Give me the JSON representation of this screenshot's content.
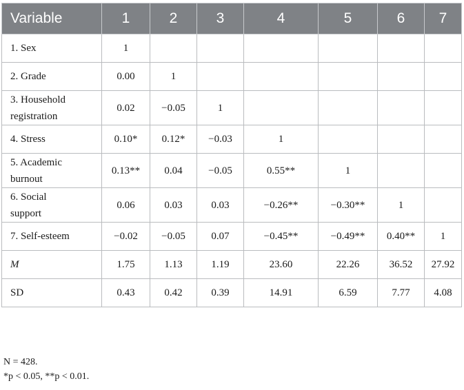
{
  "table": {
    "headers": [
      "Variable",
      "1",
      "2",
      "3",
      "4",
      "5",
      "6",
      "7"
    ],
    "rows": [
      {
        "label": [
          "1. Sex"
        ],
        "italic": false,
        "cells": [
          "1",
          "",
          "",
          "",
          "",
          "",
          ""
        ]
      },
      {
        "label": [
          "2. Grade"
        ],
        "italic": false,
        "cells": [
          "0.00",
          "1",
          "",
          "",
          "",
          "",
          ""
        ]
      },
      {
        "label": [
          "3. Household",
          "registration"
        ],
        "italic": false,
        "cells": [
          "0.02",
          "−0.05",
          "1",
          "",
          "",
          "",
          ""
        ]
      },
      {
        "label": [
          "4. Stress"
        ],
        "italic": false,
        "cells": [
          "0.10*",
          "0.12*",
          "−0.03",
          "1",
          "",
          "",
          ""
        ]
      },
      {
        "label": [
          "5. Academic",
          "burnout"
        ],
        "italic": false,
        "cells": [
          "0.13**",
          "0.04",
          "−0.05",
          "0.55**",
          "1",
          "",
          ""
        ]
      },
      {
        "label": [
          "6. Social",
          "support"
        ],
        "italic": false,
        "cells": [
          "0.06",
          "0.03",
          "0.03",
          "−0.26**",
          "−0.30**",
          "1",
          ""
        ]
      },
      {
        "label": [
          "7. Self-esteem"
        ],
        "italic": false,
        "cells": [
          "−0.02",
          "−0.05",
          "0.07",
          "−0.45**",
          "−0.49**",
          "0.40**",
          "1"
        ]
      },
      {
        "label": [
          "M"
        ],
        "italic": true,
        "cells": [
          "1.75",
          "1.13",
          "1.19",
          "23.60",
          "22.26",
          "36.52",
          "27.92"
        ]
      },
      {
        "label": [
          "SD"
        ],
        "italic": false,
        "cells": [
          "0.43",
          "0.42",
          "0.39",
          "14.91",
          "6.59",
          "7.77",
          "4.08"
        ]
      }
    ]
  },
  "notes": {
    "n": "N = 428.",
    "significance": "*p < 0.05, **p < 0.01."
  }
}
